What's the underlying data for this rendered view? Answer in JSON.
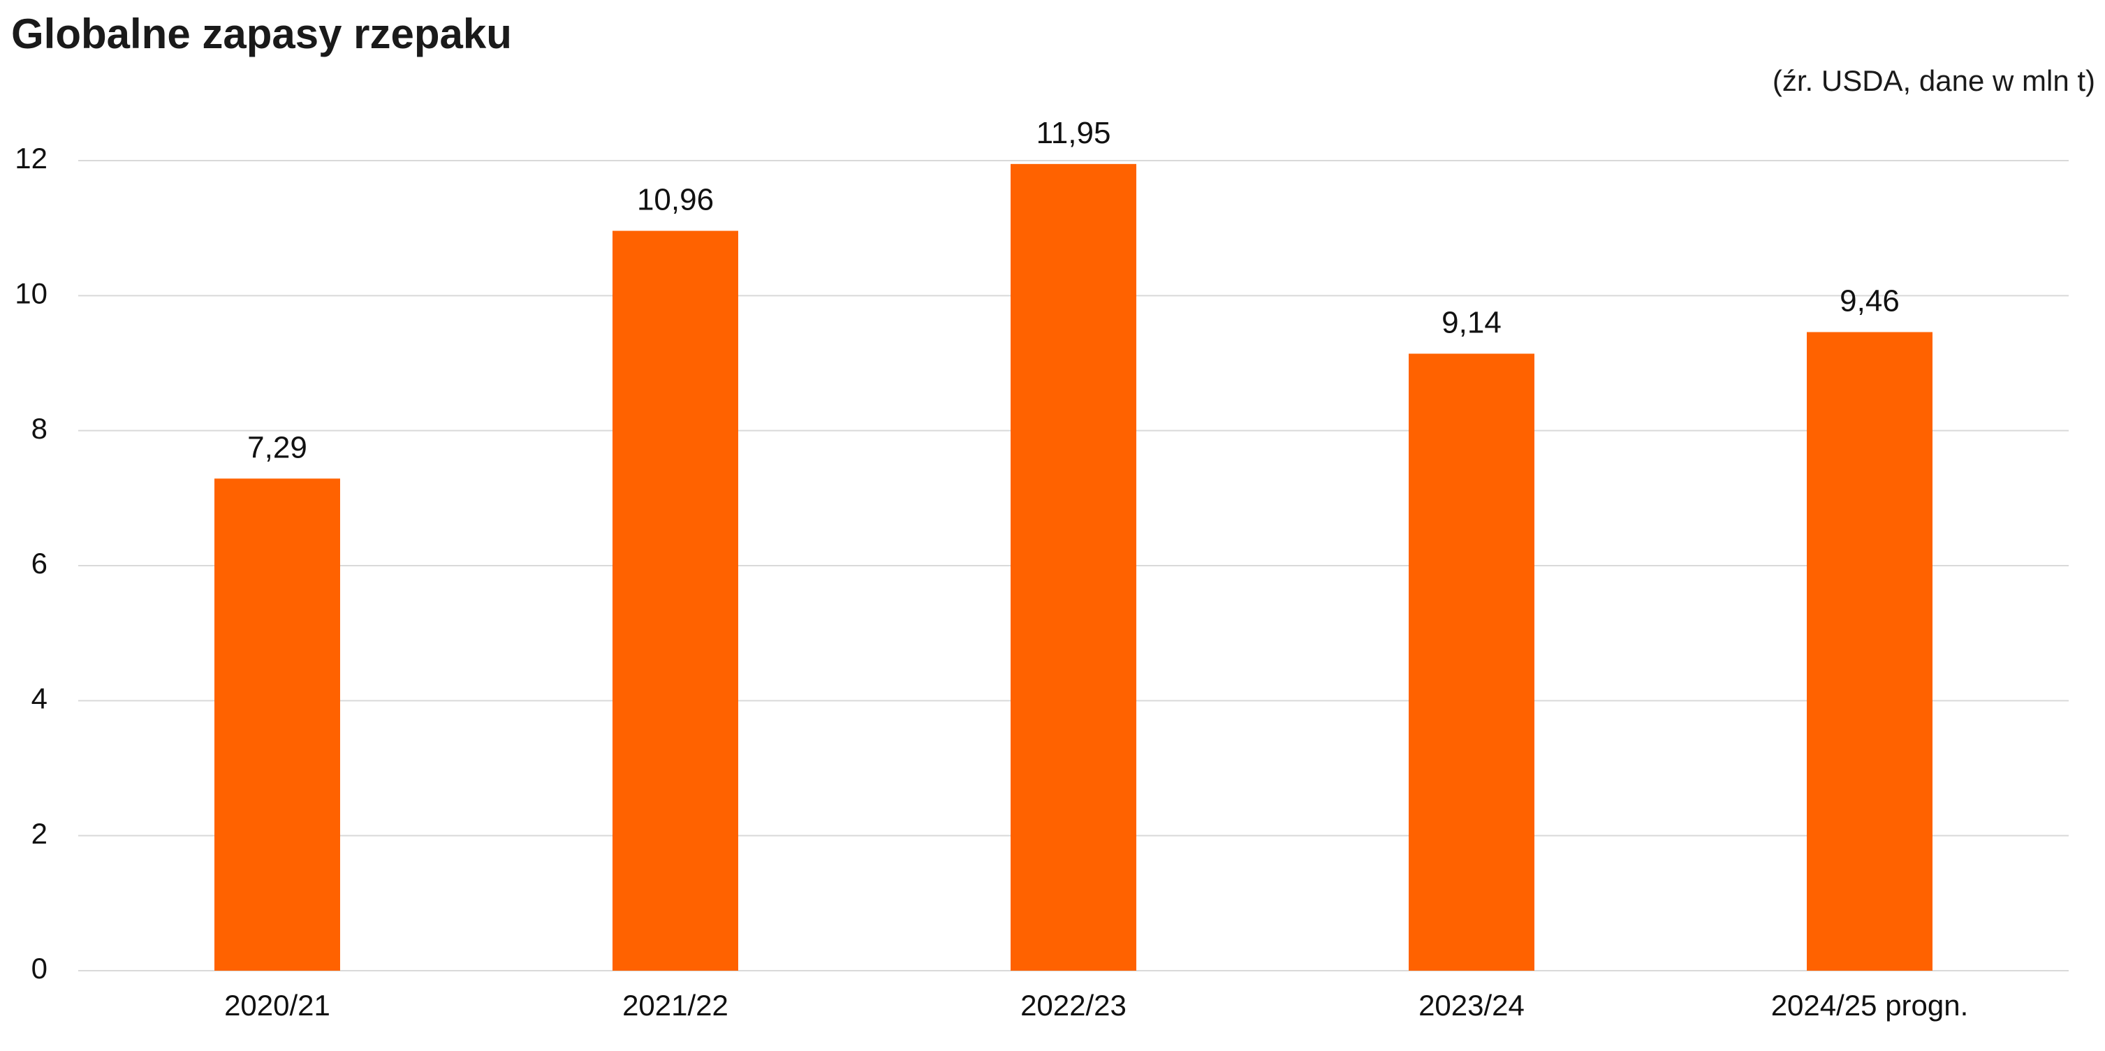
{
  "chart_data": {
    "type": "bar",
    "title": "Globalne zapasy rzepaku",
    "subtitle": "(źr. USDA, dane w mln t)",
    "xlabel": "",
    "ylabel": "",
    "categories": [
      "2020/21",
      "2021/22",
      "2022/23",
      "2023/24",
      "2024/25 progn."
    ],
    "values": [
      7.29,
      10.96,
      11.95,
      9.14,
      9.46
    ],
    "data_labels": [
      "7,29",
      "10,96",
      "11,95",
      "9,14",
      "9,46"
    ],
    "ylim": [
      0,
      12
    ],
    "yticks": [
      0,
      2,
      4,
      6,
      8,
      10,
      12
    ],
    "ytick_labels": [
      "0",
      "2",
      "4",
      "6",
      "8",
      "10",
      "12"
    ],
    "grid": true,
    "legend": "none",
    "bar_color": "#FF6200",
    "grid_color": "#D9D9D9"
  }
}
